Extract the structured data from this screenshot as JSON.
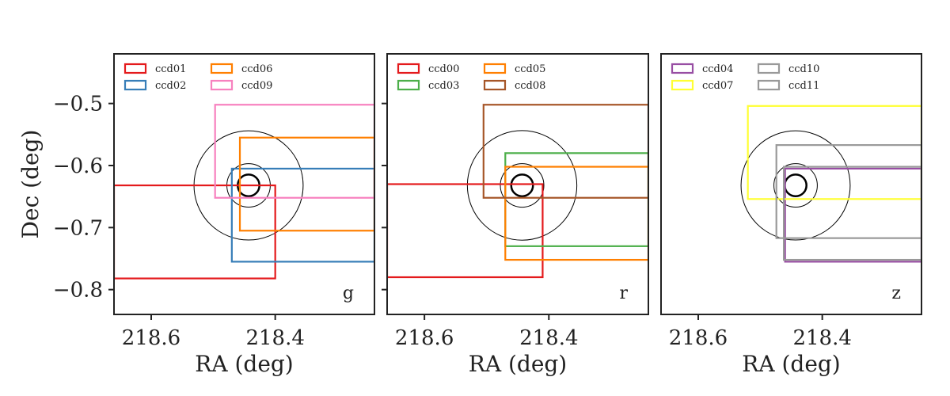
{
  "chart_data": [
    {
      "type": "line",
      "band": "g",
      "xlabel": "RA (deg)",
      "ylabel": "Dec (deg)",
      "xlim": [
        218.66,
        218.24
      ],
      "ylim": [
        -0.84,
        -0.42
      ],
      "xticks": [
        218.6,
        218.4
      ],
      "xtick_labels": [
        "218.6",
        "218.4"
      ],
      "yticks": [
        -0.5,
        -0.6,
        -0.7,
        -0.8
      ],
      "ytick_labels": [
        "−0.5",
        "−0.6",
        "−0.7",
        "−0.8"
      ],
      "legend": "upper-left",
      "circles": [
        {
          "ra": 218.443,
          "dec": -0.632,
          "radius": 0.0175,
          "width": 2.5
        },
        {
          "ra": 218.443,
          "dec": -0.632,
          "radius": 0.035,
          "width": 1.0
        },
        {
          "ra": 218.443,
          "dec": -0.632,
          "radius": 0.088,
          "width": 1.0
        }
      ],
      "series": [
        {
          "name": "ccd01",
          "color": "#e41a1c",
          "ra": [
            218.66,
            218.4
          ],
          "dec": [
            -0.782,
            -0.632
          ]
        },
        {
          "name": "ccd02",
          "color": "#377eb8",
          "ra": [
            218.47,
            218.24
          ],
          "dec": [
            -0.755,
            -0.605
          ]
        },
        {
          "name": "ccd06",
          "color": "#ff7f00",
          "ra": [
            218.457,
            218.24
          ],
          "dec": [
            -0.705,
            -0.555
          ]
        },
        {
          "name": "ccd09",
          "color": "#f781bf",
          "ra": [
            218.497,
            218.24
          ],
          "dec": [
            -0.652,
            -0.502
          ]
        }
      ]
    },
    {
      "type": "line",
      "band": "r",
      "xlabel": "RA (deg)",
      "ylabel": "",
      "xlim": [
        218.66,
        218.24
      ],
      "ylim": [
        -0.84,
        -0.42
      ],
      "xticks": [
        218.6,
        218.4
      ],
      "xtick_labels": [
        "218.6",
        "218.4"
      ],
      "yticks": [
        -0.5,
        -0.6,
        -0.7,
        -0.8
      ],
      "ytick_labels": [],
      "legend": "upper-left",
      "circles": [
        {
          "ra": 218.443,
          "dec": -0.632,
          "radius": 0.0175,
          "width": 2.5
        },
        {
          "ra": 218.443,
          "dec": -0.632,
          "radius": 0.035,
          "width": 1.0
        },
        {
          "ra": 218.443,
          "dec": -0.632,
          "radius": 0.088,
          "width": 1.0
        }
      ],
      "series": [
        {
          "name": "ccd00",
          "color": "#e41a1c",
          "ra": [
            218.66,
            218.41
          ],
          "dec": [
            -0.78,
            -0.63
          ]
        },
        {
          "name": "ccd03",
          "color": "#4daf4a",
          "ra": [
            218.47,
            218.24
          ],
          "dec": [
            -0.73,
            -0.58
          ]
        },
        {
          "name": "ccd05",
          "color": "#ff7f00",
          "ra": [
            218.47,
            218.24
          ],
          "dec": [
            -0.752,
            -0.602
          ]
        },
        {
          "name": "ccd08",
          "color": "#a65628",
          "ra": [
            218.505,
            218.24
          ],
          "dec": [
            -0.652,
            -0.502
          ]
        }
      ]
    },
    {
      "type": "line",
      "band": "z",
      "xlabel": "RA (deg)",
      "ylabel": "",
      "xlim": [
        218.66,
        218.24
      ],
      "ylim": [
        -0.84,
        -0.42
      ],
      "xticks": [
        218.6,
        218.4
      ],
      "xtick_labels": [
        "218.6",
        "218.4"
      ],
      "yticks": [],
      "ytick_labels": [],
      "legend": "upper-left",
      "circles": [
        {
          "ra": 218.443,
          "dec": -0.632,
          "radius": 0.0175,
          "width": 2.5
        },
        {
          "ra": 218.443,
          "dec": -0.632,
          "radius": 0.035,
          "width": 1.0
        },
        {
          "ra": 218.443,
          "dec": -0.632,
          "radius": 0.088,
          "width": 1.0
        }
      ],
      "series": [
        {
          "name": "ccd04",
          "color": "#984ea3",
          "ra": [
            218.46,
            218.24
          ],
          "dec": [
            -0.755,
            -0.605
          ]
        },
        {
          "name": "ccd07",
          "color": "#ffff33",
          "ra": [
            218.52,
            218.24
          ],
          "dec": [
            -0.654,
            -0.504
          ]
        },
        {
          "name": "ccd10",
          "color": "#999999",
          "ra": [
            218.474,
            218.24
          ],
          "dec": [
            -0.717,
            -0.567
          ]
        },
        {
          "name": "ccd11",
          "color": "#999999",
          "ra": [
            218.462,
            218.24
          ],
          "dec": [
            -0.752,
            -0.602
          ]
        }
      ]
    }
  ]
}
